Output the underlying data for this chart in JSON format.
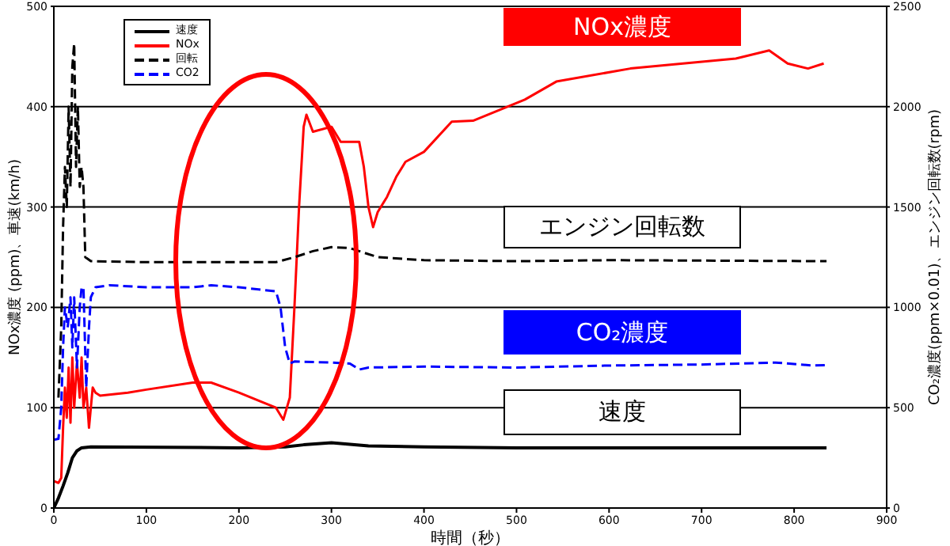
{
  "chart_data": {
    "type": "line",
    "xlabel": "時間（秒）",
    "ylabel": "NOx濃度 (ppm)、車速(km/h)",
    "y2label": "CO₂濃度(ppm×0.01)、エンジン回転数(rpm)",
    "xlim": [
      0,
      900
    ],
    "xticks": [
      0,
      100,
      200,
      300,
      400,
      500,
      600,
      700,
      800,
      900
    ],
    "ylim": [
      0,
      500
    ],
    "yticks": [
      0,
      100,
      200,
      300,
      400,
      500
    ],
    "y2lim": [
      0,
      2500
    ],
    "y2ticks": [
      0,
      500,
      1000,
      1500,
      2000,
      2500
    ],
    "grid": "y",
    "legend": "top left",
    "marker": "none",
    "annotations": [
      "NOx濃度",
      "エンジン回転数",
      "CO₂濃度",
      "速度"
    ],
    "series": [
      {
        "name": "速度",
        "color": "#000000",
        "line_style": "solid",
        "x": [
          0,
          5,
          10,
          15,
          20,
          25,
          30,
          40,
          200,
          250,
          270,
          300,
          340,
          400,
          500,
          600,
          835
        ],
        "values": [
          0,
          10,
          22,
          35,
          50,
          57,
          60,
          61,
          60,
          61,
          63,
          65,
          62,
          61,
          60,
          60,
          60
        ]
      },
      {
        "name": "NOx",
        "color": "#ff0000",
        "line_style": "solid",
        "x": [
          0,
          5,
          8,
          10,
          12,
          14,
          16,
          18,
          20,
          22,
          25,
          28,
          30,
          32,
          35,
          38,
          40,
          42,
          45,
          50,
          80,
          100,
          150,
          170,
          200,
          240,
          248,
          255,
          260,
          265,
          270,
          273,
          280,
          300,
          310,
          330,
          335,
          340,
          345,
          350,
          360,
          370,
          380,
          400,
          430,
          453,
          509,
          543,
          623,
          737,
          773,
          793,
          815,
          832
        ],
        "values": [
          27,
          25,
          30,
          80,
          120,
          90,
          140,
          85,
          150,
          100,
          145,
          110,
          150,
          100,
          120,
          80,
          100,
          120,
          115,
          112,
          115,
          118,
          125,
          125,
          115,
          100,
          88,
          110,
          200,
          300,
          380,
          392,
          375,
          380,
          365,
          365,
          340,
          300,
          280,
          295,
          310,
          330,
          345,
          355,
          385,
          386,
          407,
          425,
          438,
          448,
          456,
          443,
          438,
          443
        ]
      },
      {
        "name": "回転",
        "color": "#000000",
        "line_style": "dashed",
        "axis": "y2",
        "x": [
          5,
          8,
          10,
          12,
          14,
          16,
          18,
          20,
          22,
          24,
          26,
          28,
          30,
          32,
          34,
          40,
          100,
          200,
          240,
          260,
          280,
          300,
          320,
          350,
          400,
          500,
          600,
          835
        ],
        "values": [
          550,
          900,
          1400,
          1700,
          1500,
          2000,
          1600,
          2200,
          2315,
          1700,
          2000,
          1600,
          1700,
          1600,
          1250,
          1230,
          1225,
          1225,
          1225,
          1250,
          1280,
          1300,
          1295,
          1250,
          1235,
          1230,
          1235,
          1230
        ]
      },
      {
        "name": "CO2",
        "color": "#0000ff",
        "line_style": "dashed",
        "axis": "y2",
        "x": [
          0,
          5,
          8,
          10,
          12,
          15,
          18,
          20,
          22,
          25,
          28,
          30,
          32,
          35,
          38,
          40,
          45,
          60,
          100,
          150,
          170,
          200,
          240,
          245,
          250,
          255,
          260,
          300,
          320,
          330,
          340,
          400,
          500,
          600,
          700,
          780,
          820,
          835
        ],
        "values": [
          340,
          345,
          500,
          800,
          1000,
          900,
          1050,
          800,
          1050,
          700,
          1000,
          1100,
          1100,
          600,
          900,
          1050,
          1100,
          1110,
          1100,
          1100,
          1110,
          1100,
          1080,
          1000,
          800,
          720,
          730,
          725,
          720,
          690,
          700,
          705,
          700,
          710,
          715,
          725,
          710,
          712
        ]
      }
    ]
  }
}
